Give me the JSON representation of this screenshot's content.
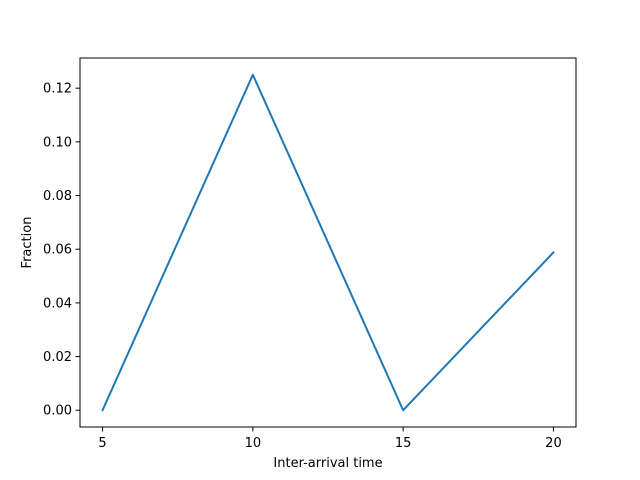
{
  "chart_data": {
    "type": "line",
    "title": "",
    "xlabel": "Inter-arrival time",
    "ylabel": "Fraction",
    "xlim": [
      4.25,
      20.75
    ],
    "ylim": [
      -0.00625,
      0.13125
    ],
    "xticks": [
      5,
      10,
      15,
      20
    ],
    "xtick_labels": [
      "5",
      "10",
      "15",
      "20"
    ],
    "yticks": [
      0.0,
      0.02,
      0.04,
      0.06,
      0.08,
      0.1,
      0.12
    ],
    "ytick_labels": [
      "0.00",
      "0.02",
      "0.04",
      "0.06",
      "0.08",
      "0.10",
      "0.12"
    ],
    "grid": false,
    "series": [
      {
        "x": [
          5,
          10,
          15,
          20
        ],
        "y": [
          0.0,
          0.125,
          0.0,
          0.0588
        ],
        "color": "#1f77b4"
      }
    ]
  }
}
